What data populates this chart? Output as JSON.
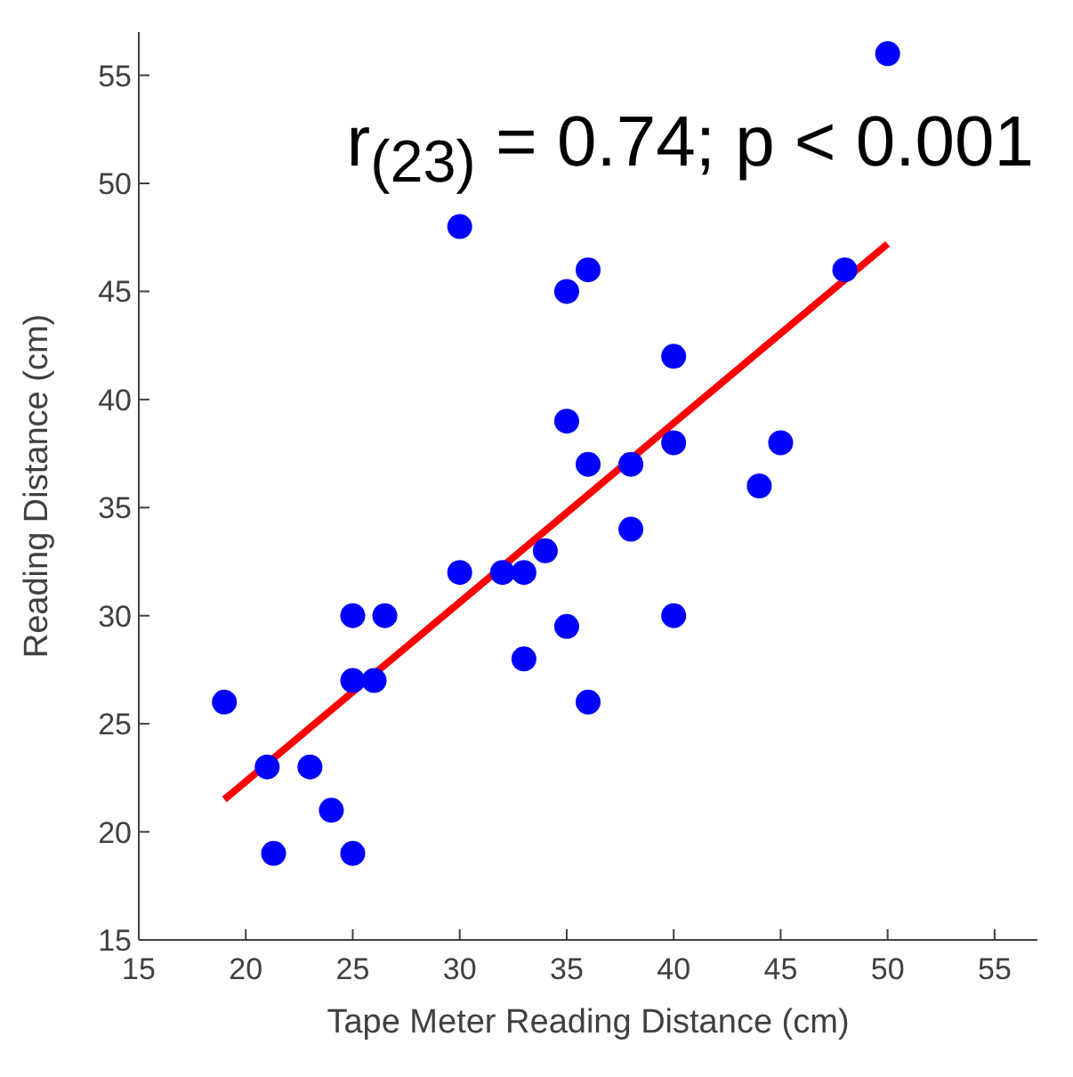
{
  "chart_data": {
    "type": "scatter",
    "xlabel": "Tape Meter Reading Distance (cm)",
    "ylabel": "Reading Distance (cm)",
    "annotations": [
      "r$_{(23)}$ = 0.74; p < 0.001"
    ],
    "xlim": [
      15,
      57
    ],
    "ylim": [
      15,
      57
    ],
    "xticks": [
      15,
      20,
      25,
      30,
      35,
      40,
      45,
      50,
      55
    ],
    "yticks": [
      15,
      20,
      25,
      30,
      35,
      40,
      45,
      50,
      55
    ],
    "grid": false,
    "series": [
      {
        "marker": "circle",
        "color": "#0000ff",
        "x": [
          19,
          21,
          21.3,
          23,
          24,
          25,
          25,
          25,
          26,
          26.5,
          30,
          30,
          32,
          33,
          33,
          34,
          35,
          35,
          35,
          36,
          36,
          36,
          38,
          38,
          40,
          40,
          40,
          44,
          45,
          48,
          50
        ],
        "values": [
          26,
          23,
          19,
          23,
          21,
          19,
          27,
          30,
          27,
          30,
          32,
          48,
          32,
          32,
          28,
          33,
          29.5,
          39,
          45,
          46,
          37,
          26,
          37,
          34,
          42,
          38,
          30,
          36,
          38,
          46,
          56
        ]
      },
      {
        "type": "line",
        "marker": "none",
        "color": "#ff0000",
        "x": [
          19,
          50
        ],
        "values": [
          21.5,
          47.2
        ]
      }
    ]
  }
}
